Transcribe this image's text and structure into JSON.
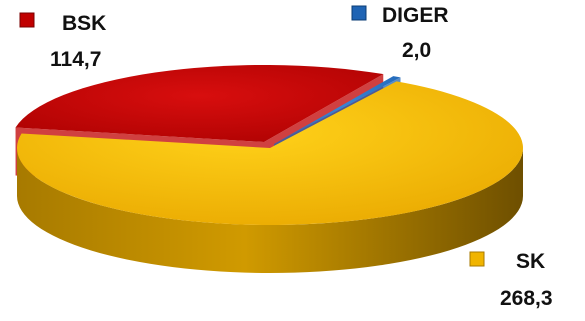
{
  "chart_data": {
    "type": "pie",
    "title": "",
    "categories": [
      "SK",
      "BSK",
      "DIGER"
    ],
    "values": [
      268.3,
      114.7,
      2.0
    ],
    "value_labels": [
      "268,3",
      "114,7",
      "2,0"
    ],
    "colors": [
      "#f0b400",
      "#c00000",
      "#1f64b4"
    ],
    "style": "3d-exploded",
    "legend": "inline-markers-next-to-slices"
  }
}
